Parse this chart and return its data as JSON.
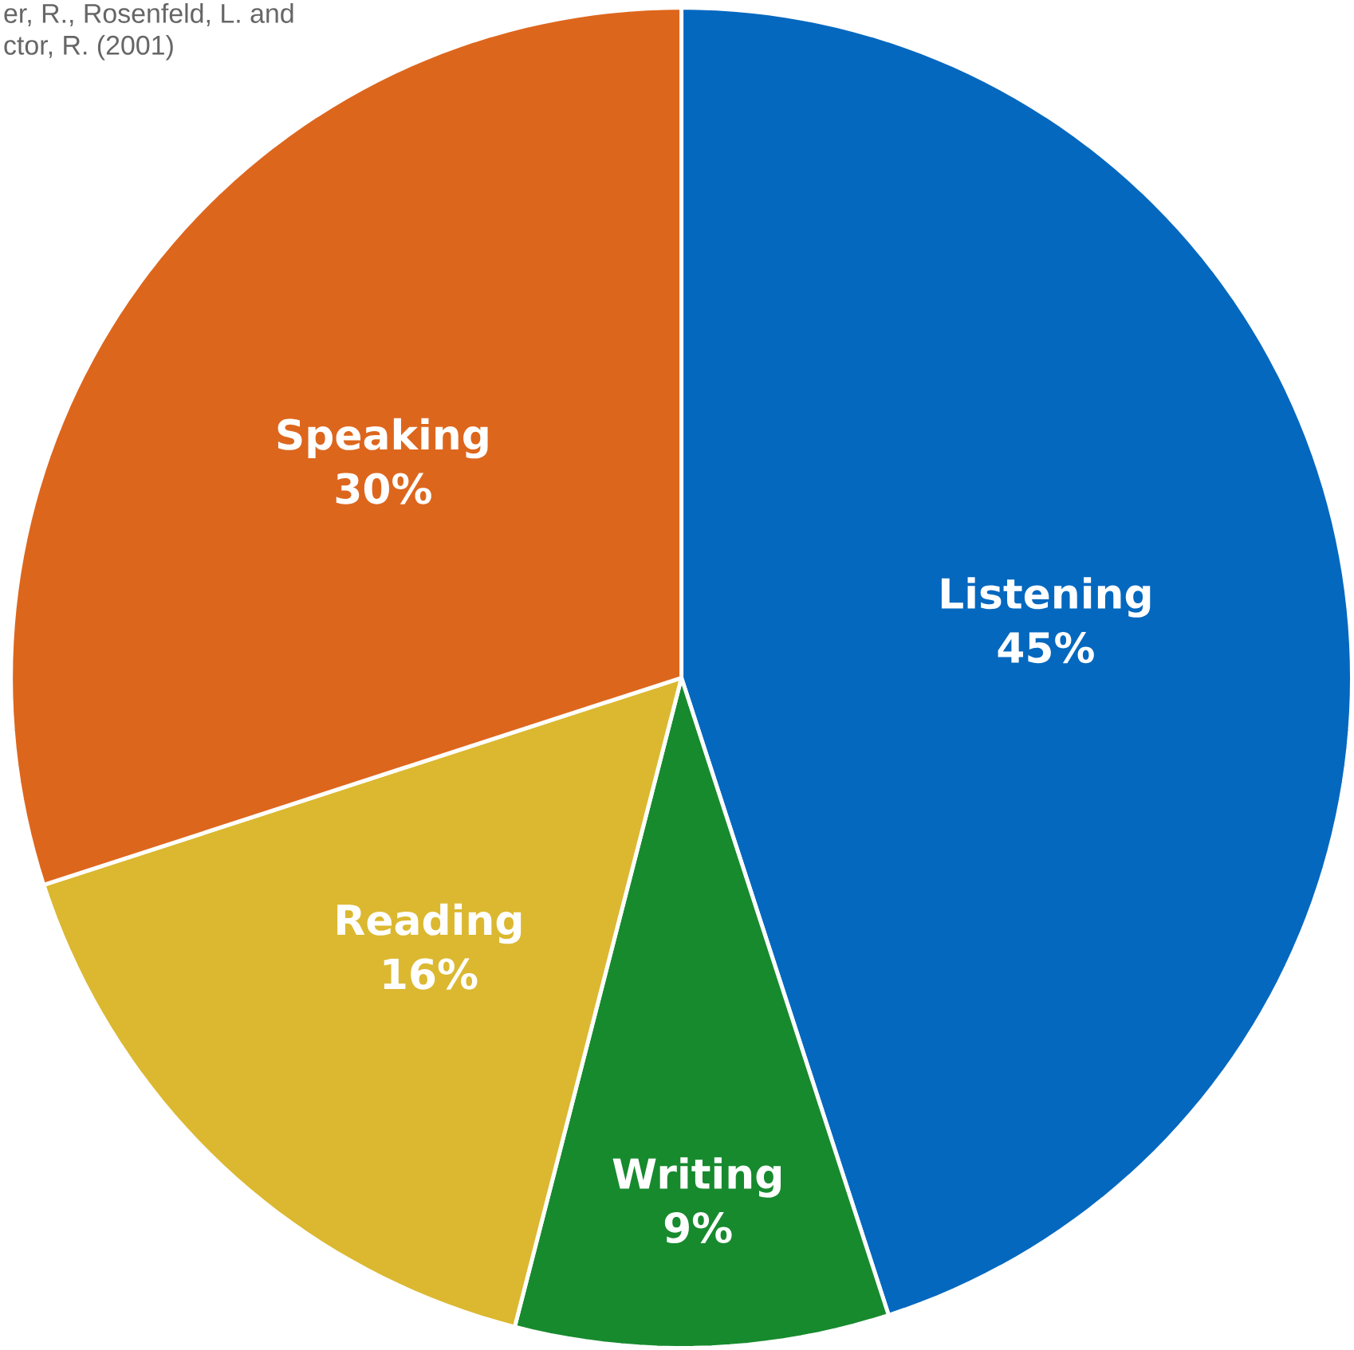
{
  "chart_data": {
    "type": "pie",
    "categories": [
      "Listening",
      "Writing",
      "Reading",
      "Speaking"
    ],
    "values": [
      45,
      9,
      16,
      30
    ],
    "colors": [
      "#0468bf",
      "#178a2e",
      "#dbb830",
      "#dd661d"
    ],
    "value_labels": [
      "45%",
      "9%",
      "16%",
      "30%"
    ],
    "annotations": [
      "er, R., Rosenfeld, L. and",
      "ctor, R. (2001)"
    ]
  }
}
